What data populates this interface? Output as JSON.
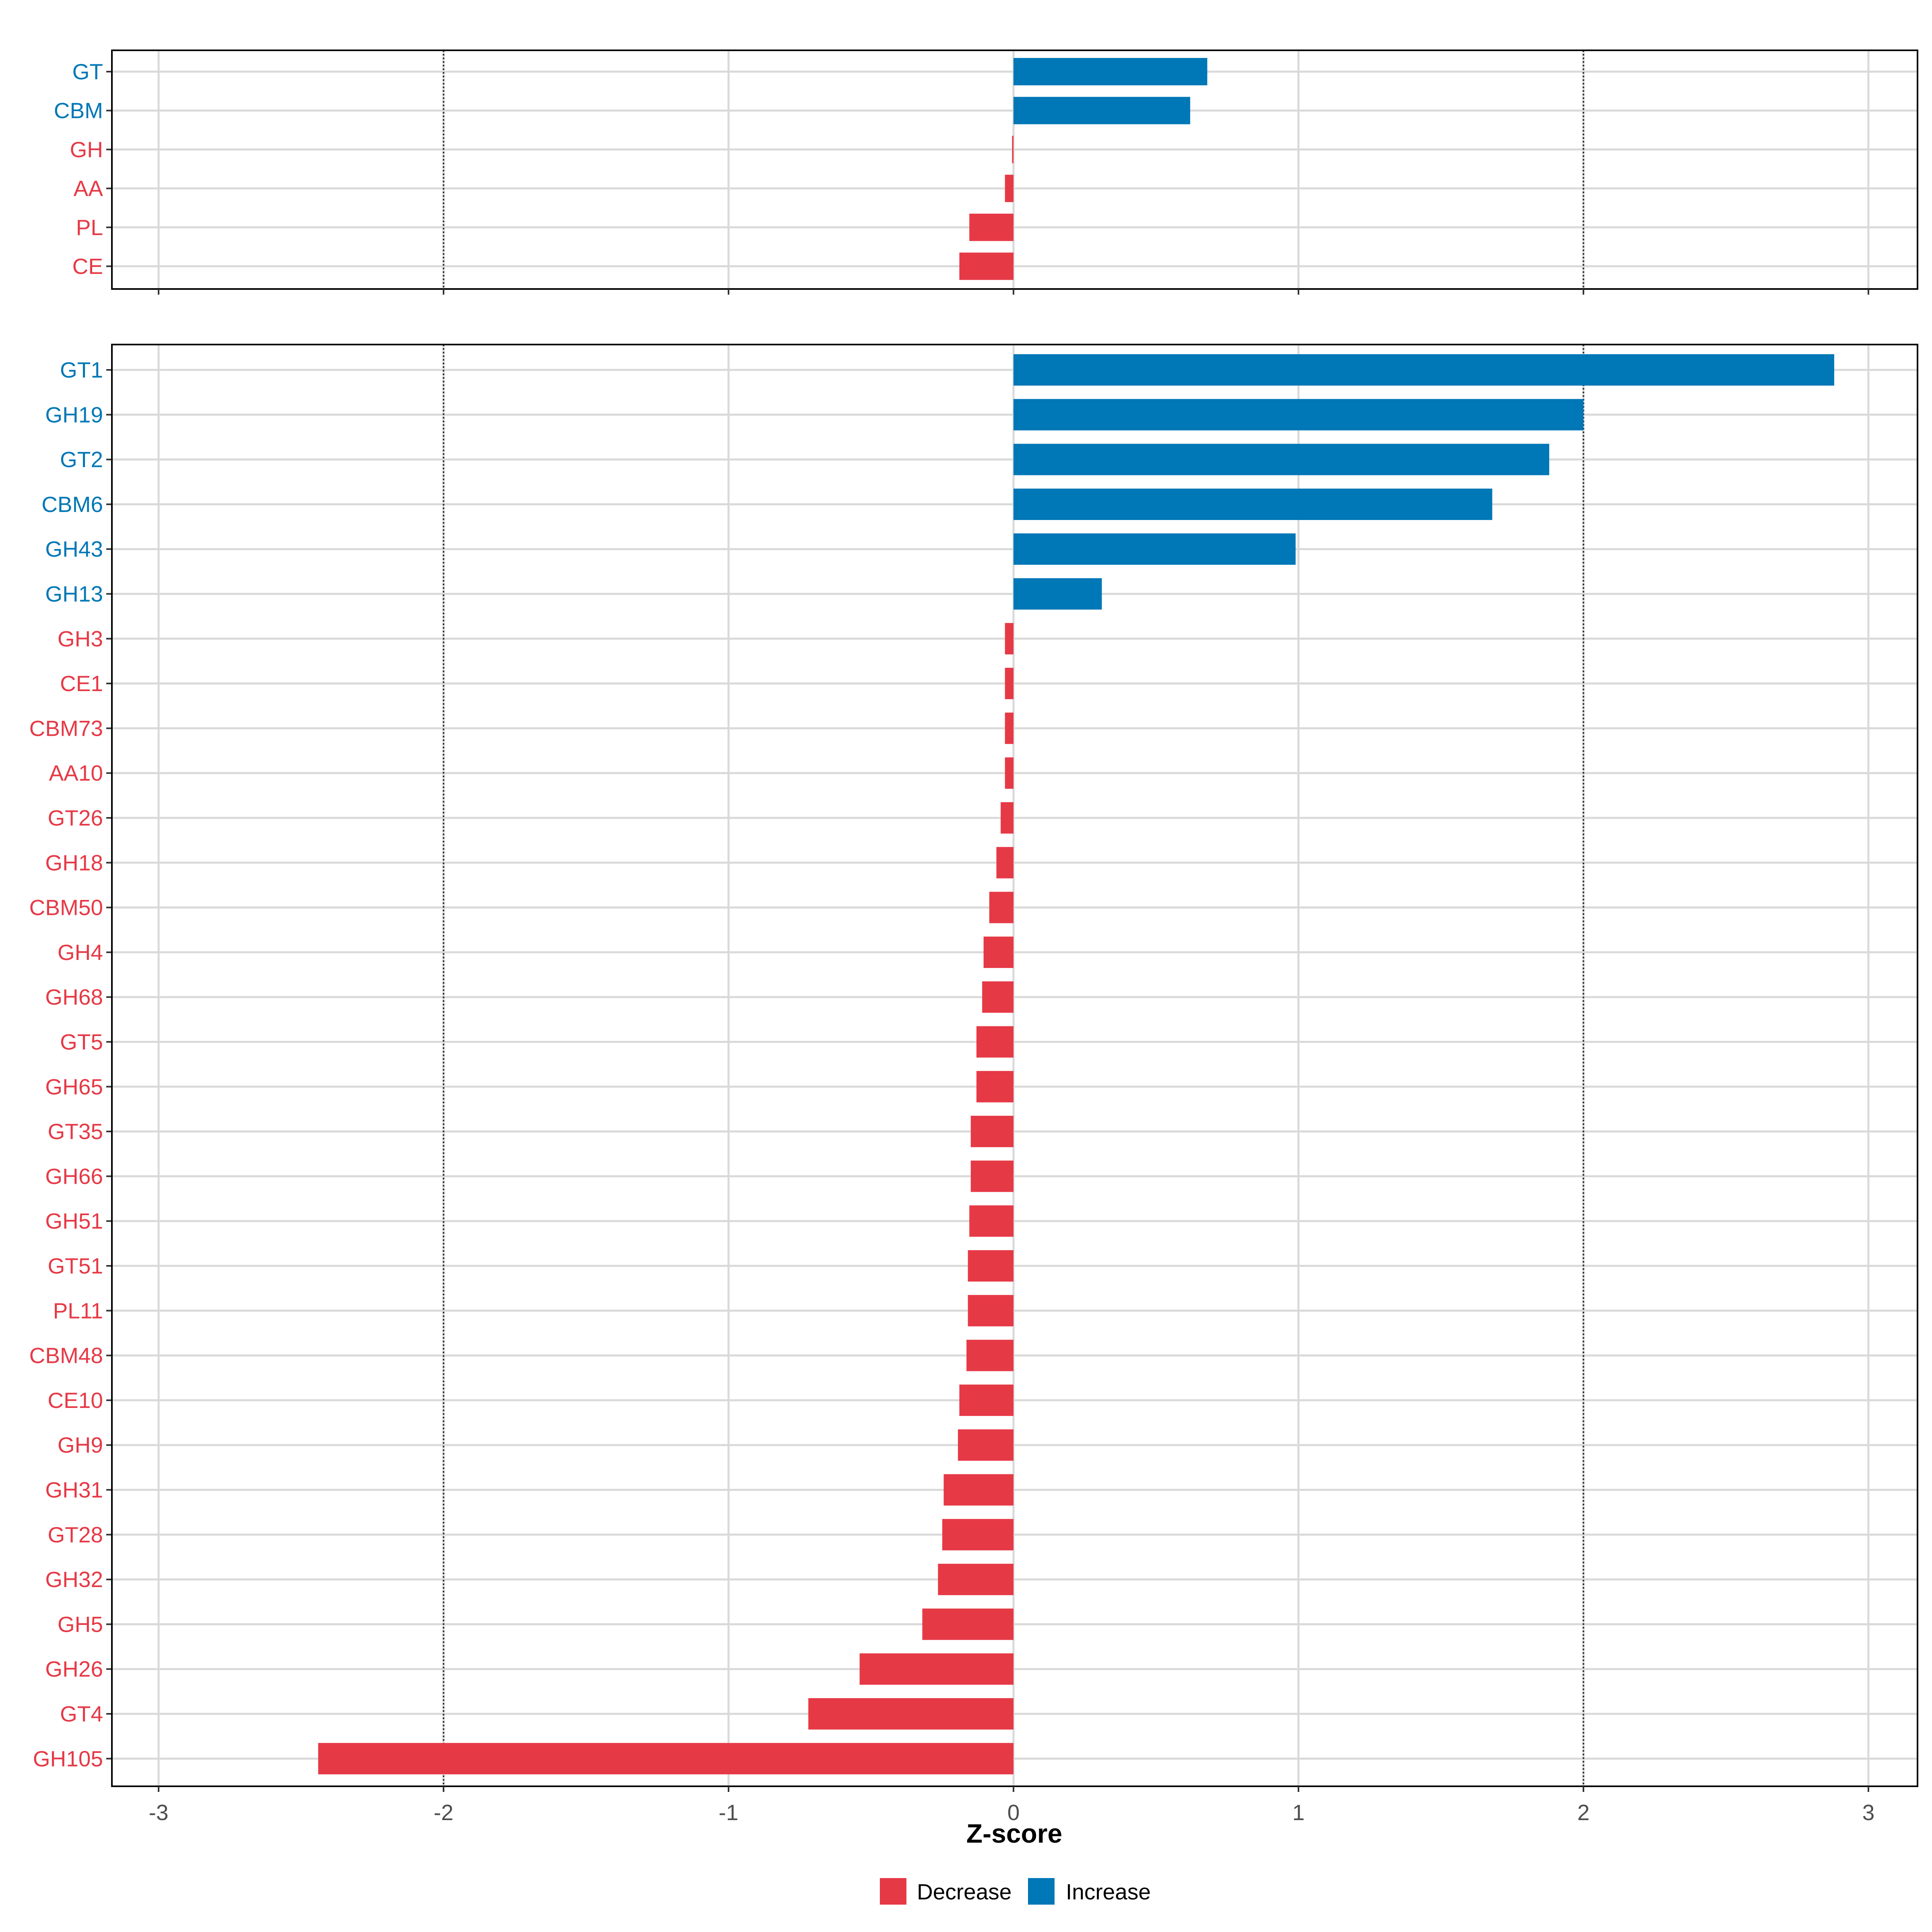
{
  "chart_data": [
    {
      "type": "bar",
      "orientation": "horizontal",
      "panel": "top",
      "title": "",
      "categories": [
        "GT",
        "CBM",
        "GH",
        "AA",
        "PL",
        "CE"
      ],
      "values": [
        0.68,
        0.62,
        -0.005,
        -0.03,
        -0.155,
        -0.19
      ],
      "direction": [
        "Increase",
        "Increase",
        "Decrease",
        "Decrease",
        "Decrease",
        "Decrease"
      ],
      "xlim": [
        -3.2,
        3.2
      ],
      "xticks": [
        "-3",
        "-2",
        "-1",
        "0",
        "1",
        "2",
        "3"
      ],
      "reference_lines": [
        -2,
        2
      ],
      "grid": true
    },
    {
      "type": "bar",
      "orientation": "horizontal",
      "panel": "bottom",
      "title": "",
      "categories": [
        "GT1",
        "GH19",
        "GT2",
        "CBM6",
        "GH43",
        "GH13",
        "GH3",
        "CE1",
        "CBM73",
        "AA10",
        "GT26",
        "GH18",
        "CBM50",
        "GH4",
        "GH68",
        "GT5",
        "GH65",
        "GT35",
        "GH66",
        "GH51",
        "GT51",
        "PL11",
        "CBM48",
        "CE10",
        "GH9",
        "GH31",
        "GT28",
        "GH32",
        "GH5",
        "GH26",
        "GT4",
        "GH105"
      ],
      "values": [
        2.88,
        2.0,
        1.88,
        1.68,
        0.99,
        0.31,
        -0.03,
        -0.03,
        -0.03,
        -0.03,
        -0.045,
        -0.06,
        -0.085,
        -0.105,
        -0.11,
        -0.13,
        -0.13,
        -0.15,
        -0.15,
        -0.155,
        -0.16,
        -0.16,
        -0.165,
        -0.19,
        -0.195,
        -0.245,
        -0.25,
        -0.265,
        -0.32,
        -0.54,
        -0.72,
        -2.44
      ],
      "direction": [
        "Increase",
        "Increase",
        "Increase",
        "Increase",
        "Increase",
        "Increase",
        "Decrease",
        "Decrease",
        "Decrease",
        "Decrease",
        "Decrease",
        "Decrease",
        "Decrease",
        "Decrease",
        "Decrease",
        "Decrease",
        "Decrease",
        "Decrease",
        "Decrease",
        "Decrease",
        "Decrease",
        "Decrease",
        "Decrease",
        "Decrease",
        "Decrease",
        "Decrease",
        "Decrease",
        "Decrease",
        "Decrease",
        "Decrease",
        "Decrease",
        "Decrease"
      ],
      "xlim": [
        -3.2,
        3.2
      ],
      "xticks": [
        "-3",
        "-2",
        "-1",
        "0",
        "1",
        "2",
        "3"
      ],
      "xlabel": "Z-score",
      "reference_lines": [
        -2,
        2
      ],
      "grid": true
    }
  ],
  "legend": {
    "position": "bottom",
    "items": [
      {
        "label": "Decrease",
        "color": "#E63946"
      },
      {
        "label": "Increase",
        "color": "#0077B6"
      }
    ]
  },
  "colors": {
    "Decrease": "#E63946",
    "Increase": "#0077B6",
    "grid": "#D9D9D9",
    "frame": "#000000",
    "reference_line": "#333333"
  }
}
